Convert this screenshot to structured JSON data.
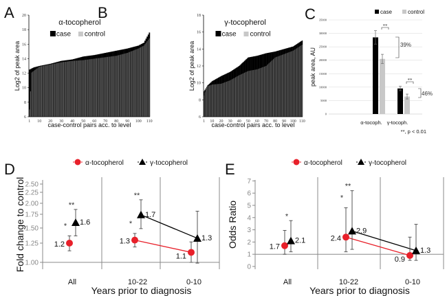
{
  "chart_data": [
    {
      "panel": "A",
      "type": "bar",
      "title": "α-tocopherol",
      "legend": [
        "case",
        "control"
      ],
      "legend_position": "top",
      "xlabel": "case-control pairs acc. to level",
      "ylabel": "Log2 of peak area",
      "ylim": [
        6,
        20
      ],
      "yticks": [
        6,
        8,
        10,
        12,
        14,
        16,
        18,
        20
      ],
      "xticks": [
        1,
        10,
        20,
        30,
        40,
        50,
        60,
        70,
        80,
        90,
        100,
        110
      ],
      "n_pairs": 110,
      "series": [
        {
          "name": "case",
          "color": "#000000",
          "profile": [
            [
              1,
              12.5
            ],
            [
              5,
              12.8
            ],
            [
              10,
              13.0
            ],
            [
              20,
              13.3
            ],
            [
              30,
              13.7
            ],
            [
              40,
              13.9
            ],
            [
              50,
              14.3
            ],
            [
              60,
              14.5
            ],
            [
              70,
              14.8
            ],
            [
              80,
              15.1
            ],
            [
              90,
              15.4
            ],
            [
              100,
              15.8
            ],
            [
              105,
              16.2
            ],
            [
              110,
              17.6
            ]
          ]
        },
        {
          "name": "control",
          "color": "#4a4a4a",
          "profile": [
            [
              1,
              7.0
            ],
            [
              2,
              9.5
            ],
            [
              3,
              12.1
            ],
            [
              10,
              12.9
            ],
            [
              20,
              13.2
            ],
            [
              30,
              13.5
            ],
            [
              40,
              13.7
            ],
            [
              50,
              13.8
            ],
            [
              60,
              14.0
            ],
            [
              70,
              14.2
            ],
            [
              80,
              14.4
            ],
            [
              90,
              14.8
            ],
            [
              100,
              15.4
            ],
            [
              105,
              15.8
            ],
            [
              110,
              16.8
            ]
          ]
        }
      ]
    },
    {
      "panel": "B",
      "type": "bar",
      "title": "γ-tocopherol",
      "legend": [
        "case",
        "control"
      ],
      "legend_position": "top",
      "xlabel": "case-control pairs acc. to level",
      "ylabel": "Log2 of peak area",
      "ylim": [
        6,
        18
      ],
      "yticks": [
        6,
        8,
        10,
        12,
        14,
        16,
        18
      ],
      "xticks": [
        1,
        10,
        20,
        30,
        40,
        50,
        60,
        70,
        80,
        90,
        100,
        110
      ],
      "n_pairs": 110,
      "series": [
        {
          "name": "case",
          "color": "#000000",
          "profile": [
            [
              1,
              9.0
            ],
            [
              5,
              9.7
            ],
            [
              10,
              10.2
            ],
            [
              20,
              10.8
            ],
            [
              30,
              11.3
            ],
            [
              40,
              12.0
            ],
            [
              50,
              13.0
            ],
            [
              60,
              13.2
            ],
            [
              70,
              13.5
            ],
            [
              80,
              13.7
            ],
            [
              90,
              14.0
            ],
            [
              100,
              14.3
            ],
            [
              110,
              15.0
            ]
          ]
        },
        {
          "name": "control",
          "color": "#4a4a4a",
          "profile": [
            [
              1,
              8.5
            ],
            [
              3,
              9.3
            ],
            [
              5,
              9.6
            ],
            [
              10,
              9.8
            ],
            [
              20,
              9.9
            ],
            [
              30,
              10.3
            ],
            [
              40,
              10.9
            ],
            [
              50,
              11.4
            ],
            [
              60,
              11.6
            ],
            [
              70,
              12.0
            ],
            [
              80,
              13.0
            ],
            [
              90,
              13.4
            ],
            [
              100,
              13.8
            ],
            [
              110,
              14.5
            ]
          ]
        }
      ]
    },
    {
      "panel": "C",
      "type": "bar",
      "legend": [
        "case",
        "control"
      ],
      "legend_position": "top",
      "ylabel": "peak area, AU",
      "ylim": [
        0,
        35000
      ],
      "yticks": [
        0,
        5000,
        10000,
        15000,
        20000,
        25000,
        30000,
        35000
      ],
      "categories": [
        "α-tocoph.",
        "γ-tocoph."
      ],
      "series": [
        {
          "name": "case",
          "color": "#000000",
          "values": [
            28500,
            9500
          ],
          "errors": [
            2500,
            800
          ]
        },
        {
          "name": "control",
          "color": "#c8c8c8",
          "values": [
            20500,
            6500
          ],
          "errors": [
            1700,
            900
          ]
        }
      ],
      "annotations": [
        "**",
        "**",
        "39%",
        "46%"
      ],
      "footnote": "**, p < 0.01"
    },
    {
      "panel": "D",
      "type": "scatter",
      "ylabel": "Fold change to control",
      "xlabel": "Years prior to diagnosis",
      "categories": [
        "All",
        "10-22",
        "0-10"
      ],
      "yticks": [
        "1.00",
        "1.25",
        "1.50",
        "1.75",
        "2.00",
        "2.25",
        "2.50"
      ],
      "ylim": [
        1.0,
        2.5
      ],
      "legend": [
        "α-tocopherol",
        "γ-tocopherol"
      ],
      "legend_position": "top",
      "series": [
        {
          "name": "α-tocopherol",
          "marker": "circle",
          "color": "#e8202a",
          "values": [
            1.25,
            1.3,
            1.13
          ],
          "labels": [
            "1.2",
            "1.3",
            "1.1"
          ],
          "ci_low": [
            1.15,
            1.2,
            1.0
          ],
          "ci_high": [
            1.37,
            1.41,
            1.27
          ],
          "sig": [
            "*",
            "*",
            ""
          ]
        },
        {
          "name": "γ-tocopherol",
          "marker": "triangle",
          "color": "#000000",
          "values": [
            1.6,
            1.74,
            1.33
          ],
          "labels": [
            "1.6",
            "1.7",
            "1.3"
          ],
          "ci_low": [
            1.37,
            1.49,
            0.99
          ],
          "ci_high": [
            1.86,
            2.08,
            1.82
          ],
          "sig": [
            "**",
            "**",
            ""
          ]
        }
      ]
    },
    {
      "panel": "E",
      "type": "scatter",
      "ylabel": "Odds Ratio",
      "xlabel": "Years prior to diagnosis",
      "categories": [
        "All",
        "10-22",
        "0-10"
      ],
      "yticks": [
        "0",
        "1",
        "2",
        "3",
        "4",
        "5",
        "6",
        "7"
      ],
      "ylim": [
        0,
        7
      ],
      "legend": [
        "α-tocopherol",
        "γ-tocopherol"
      ],
      "legend_position": "top",
      "series": [
        {
          "name": "α-tocopherol",
          "marker": "circle",
          "color": "#e8202a",
          "values": [
            1.7,
            2.4,
            0.9
          ],
          "labels": [
            "1.7",
            "2.4",
            "0.9"
          ],
          "ci_low": [
            1.0,
            1.2,
            0.5
          ],
          "ci_high": [
            2.95,
            4.8,
            2.4
          ],
          "sig": [
            "",
            "*",
            ""
          ]
        },
        {
          "name": "γ-tocopherol",
          "marker": "triangle",
          "color": "#000000",
          "values": [
            2.1,
            2.9,
            1.3
          ],
          "labels": [
            "2.1",
            "2.9",
            "1.3"
          ],
          "ci_low": [
            1.2,
            1.4,
            0.5
          ],
          "ci_high": [
            3.75,
            6.2,
            3.45
          ],
          "sig": [
            "*",
            "**",
            ""
          ]
        }
      ]
    }
  ],
  "panel_labels": [
    "A",
    "B",
    "C",
    "D",
    "E"
  ]
}
